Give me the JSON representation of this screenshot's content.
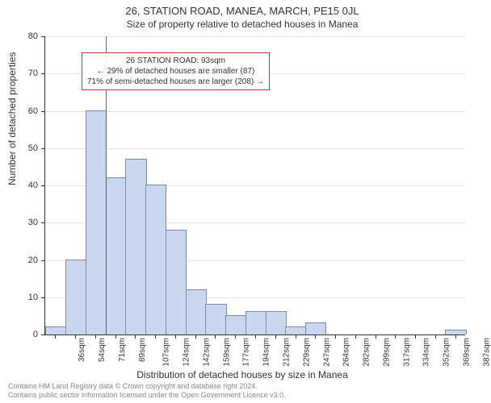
{
  "title_line1": "26, STATION ROAD, MANEA, MARCH, PE15 0JL",
  "title_line2": "Size of property relative to detached houses in Manea",
  "ylabel": "Number of detached properties",
  "xlabel": "Distribution of detached houses by size in Manea",
  "chart": {
    "type": "histogram",
    "ylim": [
      0,
      80
    ],
    "ytick_step": 10,
    "bar_fill": "#c9d8ef",
    "bar_stroke": "#7a8aa8",
    "grid_color": "#e5e5e5",
    "marker_color": "#cc3333",
    "marker_x_position": 75,
    "x_categories": [
      "36sqm",
      "54sqm",
      "71sqm",
      "89sqm",
      "107sqm",
      "124sqm",
      "142sqm",
      "159sqm",
      "177sqm",
      "194sqm",
      "212sqm",
      "229sqm",
      "247sqm",
      "264sqm",
      "282sqm",
      "299sqm",
      "317sqm",
      "334sqm",
      "352sqm",
      "369sqm",
      "387sqm"
    ],
    "values": [
      2,
      20,
      60,
      42,
      47,
      40,
      28,
      12,
      8,
      5,
      6,
      6,
      2,
      3,
      0,
      0,
      0,
      0,
      0,
      0,
      1
    ]
  },
  "annotation": {
    "line1": "26 STATION ROAD: 93sqm",
    "line2": "← 29% of detached houses are smaller (87)",
    "line3": "71% of semi-detached houses are larger (208) →"
  },
  "footer": {
    "line1": "Contains HM Land Registry data © Crown copyright and database right 2024.",
    "line2": "Contains public sector information licensed under the Open Government Licence v3.0."
  }
}
